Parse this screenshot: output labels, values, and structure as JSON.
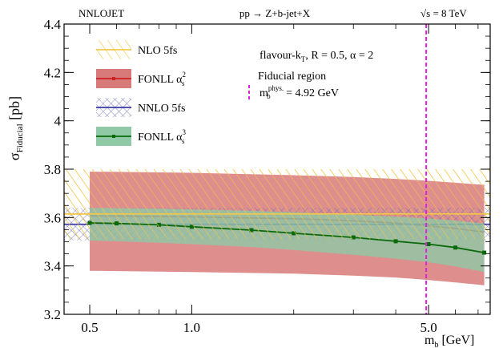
{
  "chart_data": {
    "type": "line",
    "header_left": "NNLOJET",
    "header_center": "pp → Z+b-jet+X",
    "header_right": "√s = 8 TeV",
    "xlabel": "m_b [GeV]",
    "ylabel": "σ_Fiducial [pb]",
    "xscale": "log",
    "xlim": [
      0.42,
      7.6
    ],
    "ylim": [
      3.2,
      4.4
    ],
    "xticks": [
      {
        "value": 0.5,
        "label": "0.5"
      },
      {
        "value": 1.0,
        "label": "1.0"
      },
      {
        "value": 5.0,
        "label": "5.0"
      }
    ],
    "yticks": [
      {
        "value": 3.2,
        "label": "3.2"
      },
      {
        "value": 3.4,
        "label": "3.4"
      },
      {
        "value": 3.6,
        "label": "3.6"
      },
      {
        "value": 3.8,
        "label": "3.8"
      },
      {
        "value": 4.0,
        "label": "4"
      },
      {
        "value": 4.2,
        "label": "4.2"
      },
      {
        "value": 4.4,
        "label": "4.4"
      }
    ],
    "annotations": [
      "flavour-k_T, R = 0.5, α = 2",
      "Fiducial region",
      "m_b^phys. = 4.92 GeV"
    ],
    "vline": {
      "x": 4.92,
      "color": "#e020e0"
    },
    "series": [
      {
        "name": "NLO 5fs",
        "kind": "band_flat",
        "color": "#f2c84b",
        "central": 3.615,
        "band": [
          3.51,
          3.8
        ]
      },
      {
        "name": "FONLL α_s^2",
        "kind": "band_line",
        "color": "#cc2222",
        "band_color": "#d97a7a",
        "x": [
          0.5,
          1.0,
          2.0,
          3.0,
          4.0,
          5.0,
          6.0,
          7.3
        ],
        "central": [
          3.607,
          3.603,
          3.595,
          3.587,
          3.577,
          3.566,
          3.555,
          3.54
        ],
        "upper": [
          3.79,
          3.785,
          3.775,
          3.768,
          3.76,
          3.752,
          3.744,
          3.735
        ],
        "lower": [
          3.38,
          3.375,
          3.368,
          3.36,
          3.352,
          3.342,
          3.332,
          3.32
        ]
      },
      {
        "name": "NNLO 5fs",
        "kind": "band_flat",
        "color": "#3a3aa8",
        "central": 3.572,
        "band": [
          3.505,
          3.64
        ]
      },
      {
        "name": "FONLL α_s^3",
        "kind": "band_line",
        "color": "#0a6a0a",
        "band_color": "#8fc9a6",
        "x": [
          0.5,
          0.6,
          0.8,
          1.0,
          1.5,
          2.0,
          3.0,
          4.0,
          5.0,
          6.0,
          7.3
        ],
        "central": [
          3.578,
          3.576,
          3.57,
          3.562,
          3.548,
          3.535,
          3.518,
          3.502,
          3.49,
          3.476,
          3.455
        ],
        "upper": [
          3.64,
          3.639,
          3.637,
          3.634,
          3.628,
          3.622,
          3.612,
          3.604,
          3.596,
          3.588,
          3.575
        ],
        "lower": [
          3.505,
          3.502,
          3.496,
          3.49,
          3.478,
          3.466,
          3.446,
          3.43,
          3.415,
          3.398,
          3.375
        ]
      }
    ],
    "legend": [
      {
        "label": "NLO 5fs",
        "series": 0
      },
      {
        "label": "FONLL α_s^2",
        "series": 1
      },
      {
        "label": "NNLO 5fs",
        "series": 2
      },
      {
        "label": "FONLL α_s^3",
        "series": 3
      }
    ]
  }
}
